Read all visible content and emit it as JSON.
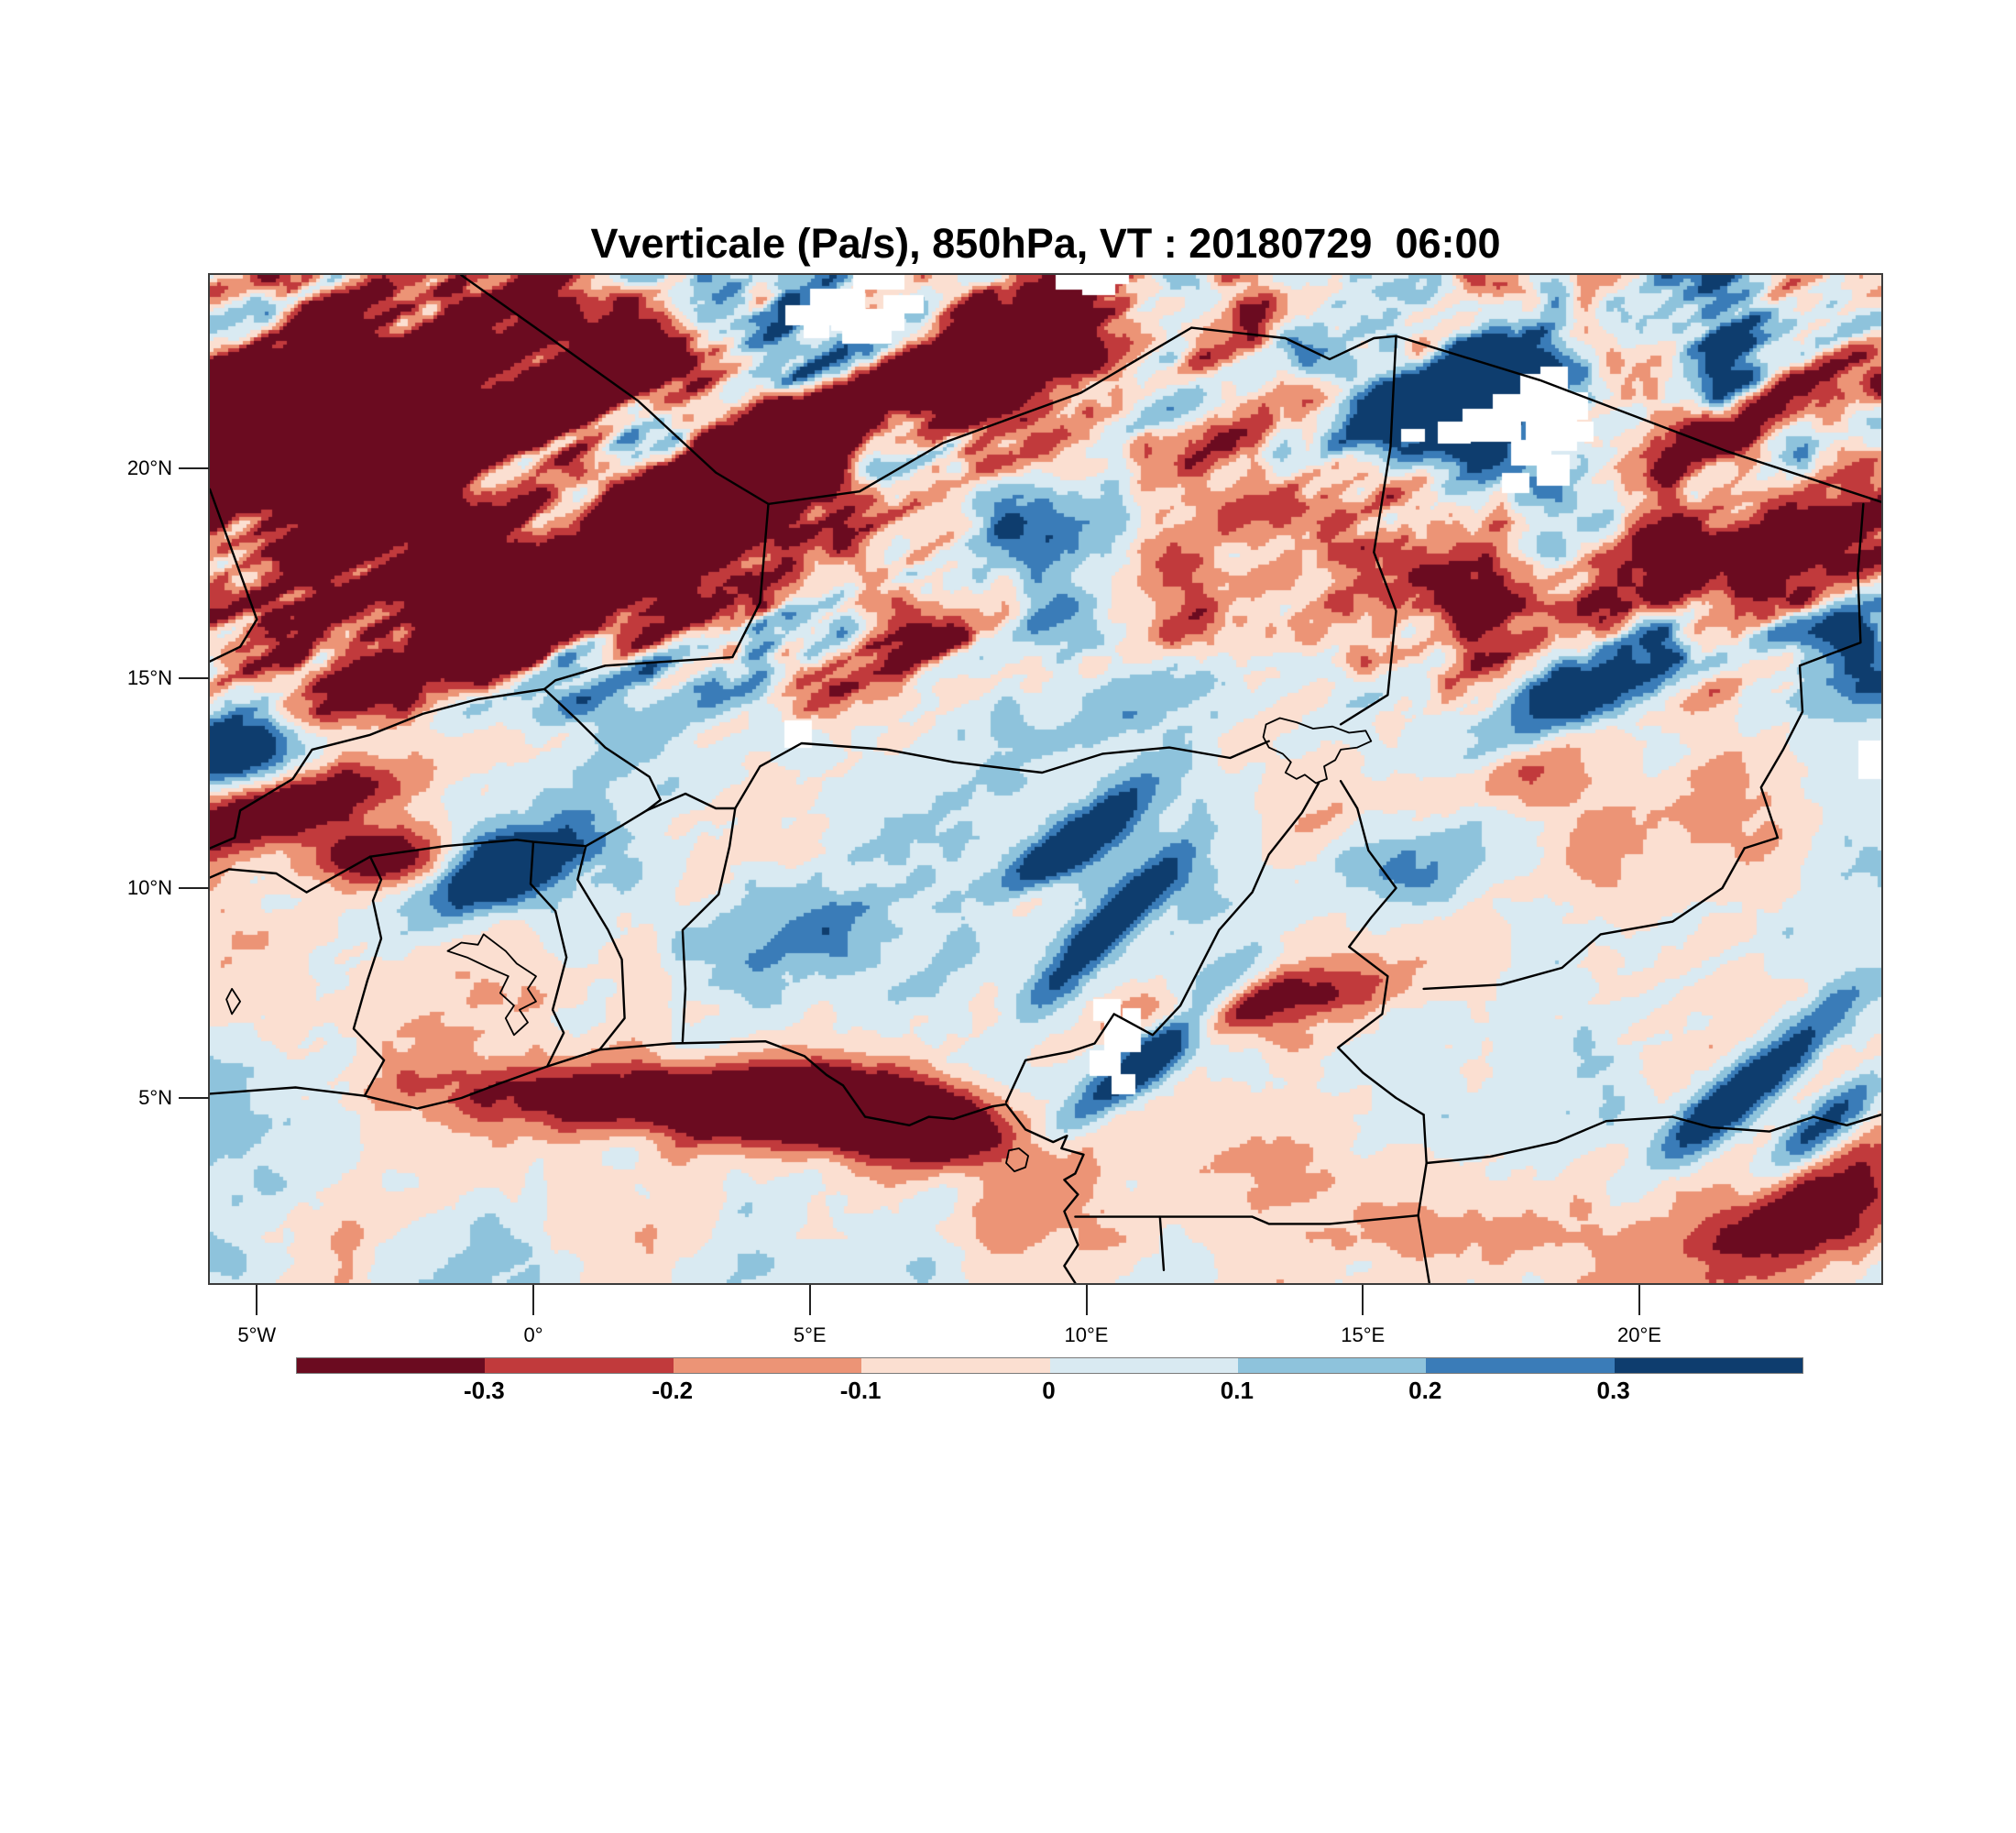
{
  "title": "Vverticale (Pa/s), 850hPa, VT : 20180729  06:00",
  "map": {
    "variable": "Vverticale",
    "units": "Pa/s",
    "pressure_level": "850hPa",
    "valid_time": "20180729  06:00",
    "extent": {
      "lon_min": -5.85,
      "lon_max": 24.37,
      "lat_min": 0.59,
      "lat_max": 24.6
    }
  },
  "y_axis": {
    "ticks": [
      {
        "label": "20°N",
        "lat": 20
      },
      {
        "label": "15°N",
        "lat": 15
      },
      {
        "label": "10°N",
        "lat": 10
      },
      {
        "label": "5°N",
        "lat": 5
      }
    ]
  },
  "x_axis": {
    "ticks": [
      {
        "label": "5°W",
        "lon": -5
      },
      {
        "label": "0°",
        "lon": 0
      },
      {
        "label": "5°E",
        "lon": 5
      },
      {
        "label": "10°E",
        "lon": 10
      },
      {
        "label": "15°E",
        "lon": 15
      },
      {
        "label": "20°E",
        "lon": 20
      }
    ]
  },
  "colorbar": {
    "labels": [
      "-0.3",
      "-0.2",
      "-0.1",
      "0",
      "0.1",
      "0.2",
      "0.3"
    ],
    "levels": [
      -0.3,
      -0.2,
      -0.1,
      0,
      0.1,
      0.2,
      0.3
    ],
    "colors": [
      "#6b0b20",
      "#c13a3c",
      "#ec9476",
      "#fbdfd1",
      "#d9eaf2",
      "#8ec3dc",
      "#3a7cb8",
      "#0e3d6e"
    ]
  },
  "chart_data": {
    "type": "heatmap",
    "title": "Vverticale (Pa/s), 850hPa, VT : 20180729  06:00",
    "field": "vertical velocity (omega)",
    "units": "Pa/s",
    "levels": [
      -0.3,
      -0.2,
      -0.1,
      0,
      0.1,
      0.2,
      0.3
    ],
    "palette": [
      "#6b0b20",
      "#c13a3c",
      "#ec9476",
      "#fbdfd1",
      "#d9eaf2",
      "#8ec3dc",
      "#3a7cb8",
      "#0e3d6e"
    ],
    "xlabel_ticks": [
      "5°W",
      "0°",
      "5°E",
      "10°E",
      "15°E",
      "20°E"
    ],
    "ylabel_ticks": [
      "20°N",
      "15°N",
      "10°N",
      "5°N"
    ],
    "extent": {
      "lon": [
        -5.85,
        24.37
      ],
      "lat": [
        0.59,
        24.6
      ]
    },
    "notable_features": [
      "strong ascending/descending streaks (dark red and dark blue) across the Sahara band north of 14N",
      "strong dark-red (negative omega) band along the Gulf of Guinea coast near 5N between 0E and 8E",
      "mostly weak values (pale pink / pale blue mottle) between 5N and 13N",
      "white missing-data patches near 6E/20N, 17-19E/15-17N, 10.5E/6.5N and the right edge"
    ]
  }
}
